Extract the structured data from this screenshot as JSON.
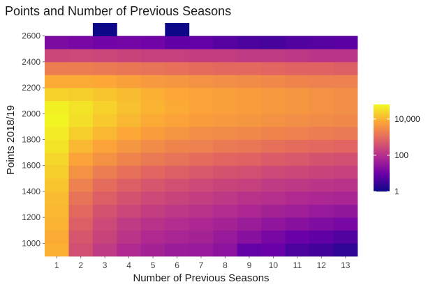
{
  "chart_data": {
    "type": "heatmap",
    "title": "Points and Number of Previous Seasons",
    "xlabel": "Number of Previous Seasons",
    "ylabel": "Points 2018/19",
    "x_categories": [
      1,
      2,
      3,
      4,
      5,
      6,
      7,
      8,
      9,
      10,
      11,
      12,
      13
    ],
    "y_bin_width": 100,
    "y_bins": [
      950,
      1050,
      1150,
      1250,
      1350,
      1450,
      1550,
      1650,
      1750,
      1850,
      1950,
      2050,
      2150,
      2250,
      2350,
      2450,
      2550,
      2650
    ],
    "y_ticks": [
      1000,
      1200,
      1400,
      1600,
      1800,
      2000,
      2200,
      2400,
      2600
    ],
    "color_scale": "log10",
    "color_range_log10": [
      0,
      4.8
    ],
    "legend": {
      "position": "right",
      "ticks": [
        {
          "label": "1",
          "log10": 0
        },
        {
          "label": "100",
          "log10": 2
        },
        {
          "label": "10,000",
          "log10": 4
        }
      ],
      "colors": [
        "#0d0887",
        "#6a00a8",
        "#b12a90",
        "#e16462",
        "#fca636",
        "#f0f921"
      ]
    },
    "log10_counts": [
      [
        3.95,
        2.55,
        2.2,
        1.9,
        1.75,
        1.6,
        1.55,
        1.4,
        0.9,
        0.95,
        0.65,
        0.55,
        0.35
      ],
      [
        3.9,
        2.65,
        2.35,
        2.1,
        1.9,
        1.8,
        1.75,
        1.55,
        1.35,
        1.15,
        0.95,
        0.85,
        0.7
      ],
      [
        4.0,
        2.8,
        2.45,
        2.2,
        2.05,
        1.95,
        1.85,
        1.75,
        1.6,
        1.45,
        1.35,
        1.25,
        1.15
      ],
      [
        4.05,
        2.95,
        2.6,
        2.4,
        2.25,
        2.15,
        2.05,
        1.95,
        1.85,
        1.75,
        1.65,
        1.55,
        1.5
      ],
      [
        4.1,
        3.1,
        2.8,
        2.6,
        2.45,
        2.35,
        2.25,
        2.15,
        2.05,
        2.0,
        1.9,
        1.85,
        1.8
      ],
      [
        4.2,
        3.3,
        3.0,
        2.8,
        2.65,
        2.55,
        2.45,
        2.35,
        2.3,
        2.2,
        2.15,
        2.1,
        2.05
      ],
      [
        4.3,
        3.55,
        3.25,
        3.05,
        2.9,
        2.8,
        2.7,
        2.6,
        2.55,
        2.45,
        2.4,
        2.35,
        2.3
      ],
      [
        4.4,
        3.8,
        3.55,
        3.35,
        3.2,
        3.1,
        3.0,
        2.9,
        2.85,
        2.75,
        2.7,
        2.6,
        2.55
      ],
      [
        4.55,
        4.05,
        3.8,
        3.6,
        3.45,
        3.35,
        3.3,
        3.2,
        3.15,
        3.05,
        3.0,
        2.95,
        2.9
      ],
      [
        4.65,
        4.3,
        4.05,
        3.85,
        3.7,
        3.6,
        3.5,
        3.45,
        3.4,
        3.35,
        3.3,
        3.25,
        3.2
      ],
      [
        4.75,
        4.5,
        4.25,
        4.05,
        3.9,
        3.8,
        3.7,
        3.65,
        3.6,
        3.55,
        3.5,
        3.45,
        3.4
      ],
      [
        4.7,
        4.55,
        4.35,
        4.15,
        4.0,
        3.9,
        3.8,
        3.75,
        3.7,
        3.65,
        3.6,
        3.55,
        3.5
      ],
      [
        4.35,
        4.3,
        4.2,
        4.1,
        3.95,
        3.85,
        3.8,
        3.75,
        3.7,
        3.65,
        3.6,
        3.55,
        3.5
      ],
      [
        3.9,
        3.9,
        3.85,
        3.75,
        3.65,
        3.6,
        3.55,
        3.5,
        3.45,
        3.4,
        3.35,
        3.3,
        3.3
      ],
      [
        3.25,
        3.25,
        3.2,
        3.15,
        3.1,
        3.05,
        3.0,
        2.95,
        2.95,
        2.9,
        2.85,
        2.85,
        2.8
      ],
      [
        2.4,
        2.45,
        2.4,
        2.35,
        2.3,
        2.3,
        2.25,
        2.25,
        2.2,
        2.2,
        2.15,
        2.1,
        2.1
      ],
      [
        1.2,
        1.15,
        1.05,
        1.1,
        1.05,
        0.85,
        0.9,
        0.75,
        0.65,
        0.6,
        0.7,
        0.75,
        0.8
      ],
      [
        null,
        null,
        0.0,
        null,
        null,
        0.0,
        null,
        null,
        null,
        null,
        null,
        null,
        null
      ]
    ]
  }
}
